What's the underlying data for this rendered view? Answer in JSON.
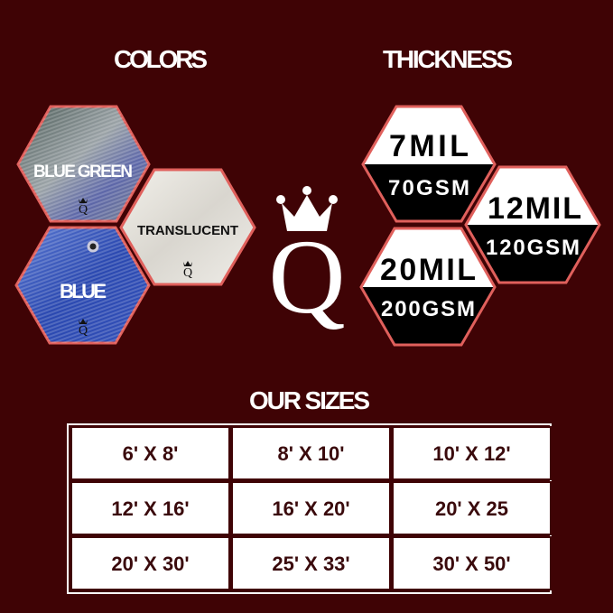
{
  "colors_section": {
    "heading": "COLORS",
    "items": [
      {
        "label": "BLUE GREEN",
        "swatch": "#6b7d8a"
      },
      {
        "label": "TRANSLUCENT",
        "swatch": "#e8e6e0"
      },
      {
        "label": "BLUE",
        "swatch": "#2f4fb8"
      }
    ]
  },
  "thickness_section": {
    "heading": "THICKNESS",
    "items": [
      {
        "mil": "7MIL",
        "gsm": "70GSM"
      },
      {
        "mil": "12MIL",
        "gsm": "120GSM"
      },
      {
        "mil": "20MIL",
        "gsm": "200GSM"
      }
    ]
  },
  "logo": {
    "letter": "Q",
    "icon": "crown-icon"
  },
  "sizes_section": {
    "heading": "OUR SIZES",
    "rows": [
      [
        "6' X 8'",
        "8' X 10'",
        "10' X 12'"
      ],
      [
        "12' X 16'",
        "16' X 20'",
        "20' X 25"
      ],
      [
        "20' X 30'",
        "25' X 33'",
        "30' X 50'"
      ]
    ]
  },
  "theme": {
    "background": "#3f0305",
    "hex_border": "#e0605c",
    "text_dark": "#3a0a0c"
  }
}
